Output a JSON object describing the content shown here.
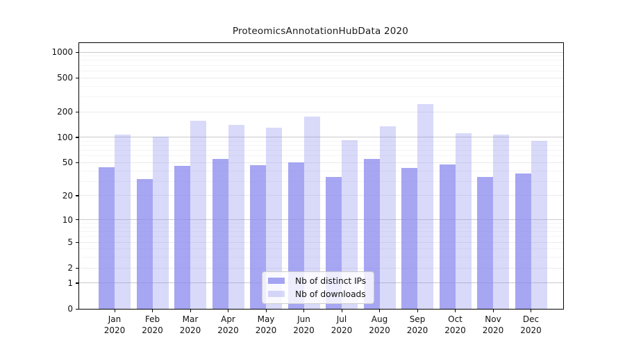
{
  "chart_data": {
    "type": "bar",
    "title": "ProteomicsAnnotationHubData 2020",
    "categories": [
      "Jan",
      "Feb",
      "Mar",
      "Apr",
      "May",
      "Jun",
      "Jul",
      "Aug",
      "Sep",
      "Oct",
      "Nov",
      "Dec"
    ],
    "category_year": "2020",
    "series": [
      {
        "name": "Nb of distinct IPs",
        "color_hex": "#8888ee",
        "alpha": 0.75,
        "values": [
          44,
          32,
          46,
          56,
          47,
          50,
          34,
          55,
          43,
          48,
          34,
          37
        ]
      },
      {
        "name": "Nb of downloads",
        "color_hex": "#8888ee",
        "alpha": 0.32,
        "values": [
          108,
          102,
          158,
          140,
          130,
          175,
          93,
          135,
          245,
          112,
          108,
          91
        ]
      }
    ],
    "xlabel": "",
    "ylabel": "",
    "y_axis": {
      "scale": "log10(value+1)",
      "tick_labels": [
        "0",
        "1",
        "2",
        "5",
        "10",
        "20",
        "50",
        "100",
        "200",
        "500",
        "1000"
      ],
      "ticks": [
        0,
        1,
        2,
        5,
        10,
        20,
        50,
        100,
        200,
        500,
        1000
      ],
      "emphasized_gridlines": [
        1,
        10,
        100,
        1000
      ],
      "minor_gridlines": [
        3,
        4,
        6,
        7,
        8,
        9,
        30,
        40,
        60,
        70,
        80,
        90,
        300,
        400,
        600,
        700,
        800,
        900
      ],
      "ylim": [
        0,
        1250
      ]
    },
    "legend_position": "lower center",
    "grid": true
  },
  "style_colors": {
    "grid_major": "#c9c9c9",
    "grid_labeled": "#eaeaea",
    "grid_minor": "#f4f4f4",
    "axis": "#000000",
    "text": "#111111",
    "legend_border": "#cccccc"
  }
}
